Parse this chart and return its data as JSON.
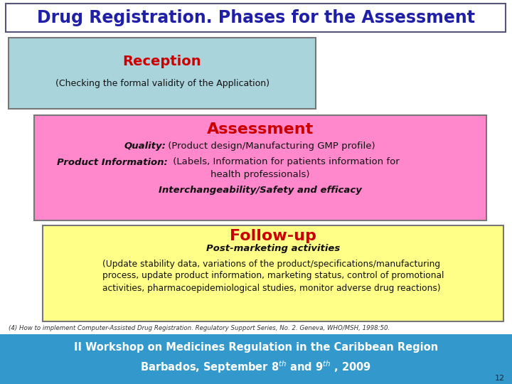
{
  "title": "Drug Registration. Phases for the Assessment",
  "title_color": "#1f1fa8",
  "title_bg": "#ffffff",
  "title_border": "#555577",
  "bg_color": "#ffffff",
  "reception_title": "Reception",
  "reception_subtitle": "(Checking the formal validity of the Application)",
  "reception_bg": "#aad4dc",
  "reception_title_color": "#cc0000",
  "reception_border": "#777777",
  "assessment_title": "Assessment",
  "assessment_line1_bold": "Quality:",
  "assessment_line1_rest": " (Product design/Manufacturing GMP profile)",
  "assessment_line2_bold": "Product Information:",
  "assessment_line2_rest": " (Labels, Information for patients information for",
  "assessment_line2b": "health professionals)",
  "assessment_line3": "Interchangeability/Safety and efficacy",
  "assessment_bg": "#ff88cc",
  "assessment_title_color": "#cc0000",
  "assessment_border": "#777777",
  "followup_title": "Follow-up",
  "followup_line1": "Post-marketing activities",
  "followup_line2": "(Update stability data, variations of the product/specifications/manufacturing\nprocess, update product information, marketing status, control of promotional\nactivities, pharmacoepidemiological studies, monitor adverse drug reactions)",
  "followup_bg": "#ffff88",
  "followup_title_color": "#cc0000",
  "followup_border": "#777777",
  "footnote": "(4) How to implement Computer-Assisted Drug Registration. Regulatory Support Series, No. 2. Geneva, WHO/MSH, 1998:50.",
  "footer_bg": "#3399cc",
  "footer_text1": "II Workshop on Medicines Regulation in the Caribbean Region",
  "footer_text_color": "#ffffff",
  "page_num": "12"
}
